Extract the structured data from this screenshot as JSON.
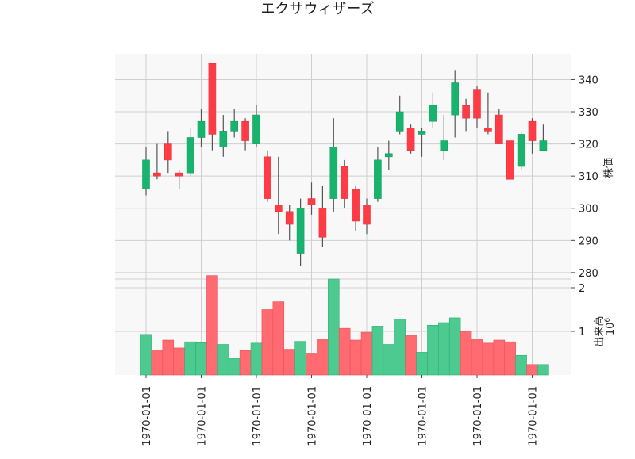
{
  "chart_data": {
    "type": "candlestick",
    "title": "エクサウィザーズ",
    "price_axis": {
      "label": "株価",
      "range": [
        278,
        348
      ],
      "ticks": [
        280,
        290,
        300,
        310,
        320,
        330,
        340
      ]
    },
    "volume_axis": {
      "label": "出来高",
      "scale_label": "10^6",
      "range": [
        0,
        2.2
      ],
      "ticks": [
        1,
        2
      ]
    },
    "x_tick_labels": [
      "1970-01-01",
      "1970-01-01",
      "1970-01-01",
      "1970-01-01",
      "1970-01-01",
      "1970-01-01",
      "1970-01-01",
      "1970-01-01"
    ],
    "x_tick_positions": [
      0,
      5,
      10,
      15,
      20,
      25,
      30,
      35
    ],
    "grid": true,
    "colors": {
      "up": "#18b46e",
      "down": "#ff3c46",
      "up_volume": "#4cca8f",
      "down_volume": "#ff6b70",
      "grid": "#cfcfcf",
      "panel_bg": "#f8f8f8",
      "wick": "#555555"
    },
    "candles": [
      {
        "open": 306,
        "high": 319,
        "low": 304,
        "close": 315,
        "volume": 0.93
      },
      {
        "open": 311,
        "high": 320,
        "low": 309,
        "close": 310,
        "volume": 0.57
      },
      {
        "open": 320,
        "high": 324,
        "low": 311,
        "close": 315,
        "volume": 0.8
      },
      {
        "open": 311,
        "high": 312,
        "low": 306,
        "close": 310,
        "volume": 0.62
      },
      {
        "open": 311,
        "high": 325,
        "low": 310,
        "close": 322,
        "volume": 0.76
      },
      {
        "open": 322,
        "high": 331,
        "low": 319,
        "close": 327,
        "volume": 0.74
      },
      {
        "open": 345,
        "high": 345,
        "low": 318,
        "close": 323,
        "volume": 2.28
      },
      {
        "open": 319,
        "high": 329,
        "low": 316,
        "close": 324,
        "volume": 0.7
      },
      {
        "open": 324,
        "high": 331,
        "low": 322,
        "close": 327,
        "volume": 0.38
      },
      {
        "open": 327,
        "high": 328,
        "low": 318,
        "close": 321,
        "volume": 0.56
      },
      {
        "open": 320,
        "high": 332,
        "low": 319,
        "close": 329,
        "volume": 0.73
      },
      {
        "open": 316,
        "high": 318,
        "low": 302,
        "close": 303,
        "volume": 1.5
      },
      {
        "open": 301,
        "high": 316,
        "low": 292,
        "close": 299,
        "volume": 1.68
      },
      {
        "open": 299,
        "high": 301,
        "low": 290,
        "close": 295,
        "volume": 0.59
      },
      {
        "open": 286,
        "high": 303,
        "low": 282,
        "close": 300,
        "volume": 0.77
      },
      {
        "open": 303,
        "high": 308,
        "low": 298,
        "close": 301,
        "volume": 0.5
      },
      {
        "open": 300,
        "high": 307,
        "low": 288,
        "close": 291,
        "volume": 0.82
      },
      {
        "open": 303,
        "high": 328,
        "low": 299,
        "close": 319,
        "volume": 2.2
      },
      {
        "open": 313,
        "high": 315,
        "low": 300,
        "close": 303,
        "volume": 1.07
      },
      {
        "open": 306,
        "high": 307,
        "low": 293,
        "close": 296,
        "volume": 0.8
      },
      {
        "open": 301,
        "high": 303,
        "low": 292,
        "close": 295,
        "volume": 0.98
      },
      {
        "open": 303,
        "high": 319,
        "low": 302,
        "close": 315,
        "volume": 1.12
      },
      {
        "open": 316,
        "high": 321,
        "low": 312,
        "close": 317,
        "volume": 0.7
      },
      {
        "open": 324,
        "high": 335,
        "low": 323,
        "close": 330,
        "volume": 1.28
      },
      {
        "open": 325,
        "high": 326,
        "low": 317,
        "close": 318,
        "volume": 0.91
      },
      {
        "open": 323,
        "high": 325,
        "low": 316,
        "close": 324,
        "volume": 0.52
      },
      {
        "open": 327,
        "high": 336,
        "low": 325,
        "close": 332,
        "volume": 1.14
      },
      {
        "open": 318,
        "high": 329,
        "low": 315,
        "close": 321,
        "volume": 1.2
      },
      {
        "open": 329,
        "high": 343,
        "low": 322,
        "close": 339,
        "volume": 1.31
      },
      {
        "open": 332,
        "high": 334,
        "low": 324,
        "close": 328,
        "volume": 1.0
      },
      {
        "open": 337,
        "high": 338,
        "low": 325,
        "close": 328,
        "volume": 0.82
      },
      {
        "open": 325,
        "high": 336,
        "low": 323,
        "close": 324,
        "volume": 0.73
      },
      {
        "open": 329,
        "high": 331,
        "low": 320,
        "close": 320,
        "volume": 0.8
      },
      {
        "open": 321,
        "high": 321,
        "low": 309,
        "close": 309,
        "volume": 0.76
      },
      {
        "open": 313,
        "high": 324,
        "low": 312,
        "close": 323,
        "volume": 0.45
      },
      {
        "open": 327,
        "high": 328,
        "low": 317,
        "close": 321,
        "volume": 0.24
      },
      {
        "open": 318,
        "high": 326,
        "low": 318,
        "close": 321,
        "volume": 0.24
      }
    ]
  }
}
